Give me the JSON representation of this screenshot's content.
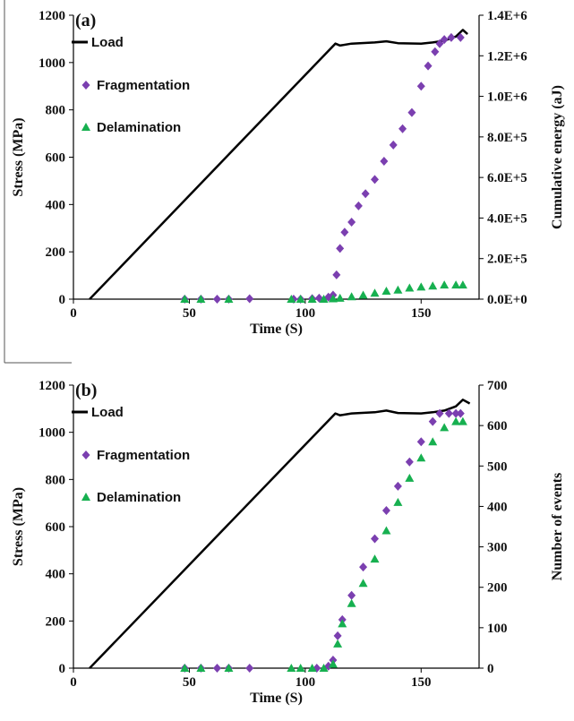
{
  "colors": {
    "load": "#000000",
    "fragmentation": "#7b3fb0",
    "delamination": "#17b050"
  },
  "chart_data": [
    {
      "type": "line",
      "panel_label": "(a)",
      "xlabel": "Time (S)",
      "ylabel": "Stress (MPa)",
      "y2label": "Cumulative energy (aJ)",
      "xlim": [
        0,
        175
      ],
      "ylim": [
        0,
        1200
      ],
      "y2lim": [
        0,
        1400000
      ],
      "x_ticks": [
        "0",
        "50",
        "100",
        "150"
      ],
      "y_ticks": [
        "0",
        "200",
        "400",
        "600",
        "800",
        "1000",
        "1200"
      ],
      "y2_ticks": [
        "0.0E+0",
        "2.0E+5",
        "4.0E+5",
        "6.0E+5",
        "8.0E+5",
        "1.0E+6",
        "1.2E+6",
        "1.4E+6"
      ],
      "legend": [
        "Load",
        "Fragmentation",
        "Delamination"
      ],
      "series": [
        {
          "name": "Load",
          "axis": "left",
          "style": "line",
          "x": [
            7,
            113,
            115,
            120,
            130,
            135,
            140,
            150,
            155,
            160,
            165,
            168,
            170
          ],
          "y": [
            0,
            1080,
            1072,
            1080,
            1085,
            1090,
            1082,
            1080,
            1085,
            1092,
            1110,
            1138,
            1120
          ]
        },
        {
          "name": "Fragmentation",
          "axis": "right",
          "style": "markers",
          "x": [
            48,
            55,
            62,
            67,
            76,
            95,
            98,
            103,
            106,
            110,
            112,
            113.5,
            115,
            117,
            120,
            123,
            126,
            130,
            134,
            138,
            142,
            146,
            150,
            153,
            156,
            158,
            160,
            163,
            167
          ],
          "y": [
            0,
            0,
            0,
            0,
            2000,
            0,
            0,
            3000,
            5000,
            10000,
            20000,
            120000,
            250000,
            330000,
            380000,
            460000,
            520000,
            590000,
            680000,
            760000,
            840000,
            920000,
            1050000,
            1150000,
            1220000,
            1260000,
            1280000,
            1290000,
            1290000
          ]
        },
        {
          "name": "Delamination",
          "axis": "right",
          "style": "markers",
          "x": [
            48,
            55,
            67,
            94,
            98,
            103,
            108,
            112,
            115,
            120,
            125,
            130,
            135,
            140,
            145,
            150,
            155,
            160,
            165,
            168
          ],
          "y": [
            0,
            0,
            0,
            0,
            0,
            0,
            0,
            2000,
            5000,
            12000,
            20000,
            30000,
            40000,
            45000,
            55000,
            60000,
            65000,
            70000,
            70000,
            70000
          ]
        }
      ]
    },
    {
      "type": "line",
      "panel_label": "(b)",
      "xlabel": "Time (S)",
      "ylabel": "Stress (MPa)",
      "y2label": "Number of events",
      "xlim": [
        0,
        175
      ],
      "ylim": [
        0,
        1200
      ],
      "y2lim": [
        0,
        700
      ],
      "x_ticks": [
        "0",
        "50",
        "100",
        "150"
      ],
      "y_ticks": [
        "0",
        "200",
        "400",
        "600",
        "800",
        "1000",
        "1200"
      ],
      "y2_ticks": [
        "0",
        "100",
        "200",
        "300",
        "400",
        "500",
        "600",
        "700"
      ],
      "legend": [
        "Load",
        "Fragmentation",
        "Delamination"
      ],
      "series": [
        {
          "name": "Load",
          "axis": "left",
          "style": "line",
          "x": [
            7,
            113,
            115,
            120,
            130,
            135,
            140,
            150,
            155,
            160,
            165,
            168,
            171
          ],
          "y": [
            0,
            1080,
            1072,
            1080,
            1085,
            1092,
            1082,
            1080,
            1085,
            1092,
            1110,
            1138,
            1122
          ]
        },
        {
          "name": "Fragmentation",
          "axis": "right",
          "style": "markers",
          "x": [
            48,
            55,
            62,
            67,
            76,
            105,
            110,
            112,
            114,
            116,
            120,
            125,
            130,
            135,
            140,
            145,
            150,
            155,
            158,
            162,
            165,
            167
          ],
          "y": [
            0,
            0,
            0,
            0,
            0,
            0,
            5,
            20,
            80,
            120,
            180,
            250,
            320,
            390,
            450,
            510,
            560,
            610,
            630,
            630,
            630,
            630
          ]
        },
        {
          "name": "Delamination",
          "axis": "right",
          "style": "markers",
          "x": [
            48,
            55,
            67,
            94,
            98,
            103,
            108,
            112,
            114,
            116,
            120,
            125,
            130,
            135,
            140,
            145,
            150,
            155,
            160,
            165,
            168
          ],
          "y": [
            0,
            0,
            0,
            0,
            0,
            0,
            0,
            10,
            60,
            110,
            160,
            210,
            270,
            340,
            410,
            470,
            520,
            560,
            595,
            610,
            610
          ]
        }
      ]
    }
  ]
}
